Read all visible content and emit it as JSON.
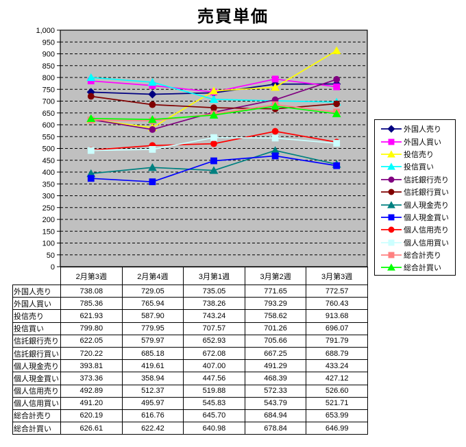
{
  "chart": {
    "title": "売買単価"
  },
  "colors": {
    "chart_background": "#FFFFFF",
    "plot_background": "#C0C0C0",
    "grid_line": "#000000",
    "axis_line": "#000000",
    "text": "#000000",
    "legend_border": "#000000",
    "table_border": "#000000"
  },
  "chart_data": {
    "type": "line",
    "title": "売買単価",
    "xlabel": "",
    "ylabel": "",
    "ylim": [
      0,
      1000
    ],
    "ytick_step": 50,
    "grid": "horizontal-dashed",
    "legend_position": "right",
    "plot_bg": "#C0C0C0",
    "value_decimals": 2,
    "categories": [
      "2月第3週",
      "2月第4週",
      "3月第1週",
      "3月第2週",
      "3月第3週"
    ],
    "series": [
      {
        "name": "外国人売り",
        "color": "#000080",
        "marker": "diamond",
        "values": [
          738.08,
          729.05,
          735.05,
          771.65,
          772.57
        ]
      },
      {
        "name": "外国人買い",
        "color": "#FF00FF",
        "marker": "square",
        "values": [
          785.36,
          765.94,
          738.26,
          793.29,
          760.43
        ]
      },
      {
        "name": "投信売り",
        "color": "#FFFF00",
        "marker": "triangle",
        "values": [
          621.93,
          587.9,
          743.24,
          758.62,
          913.68
        ]
      },
      {
        "name": "投信買い",
        "color": "#00FFFF",
        "marker": "triangle",
        "values": [
          799.8,
          779.95,
          707.57,
          701.26,
          696.07
        ]
      },
      {
        "name": "信託銀行売り",
        "color": "#800080",
        "marker": "circle",
        "values": [
          622.05,
          579.97,
          652.93,
          705.66,
          791.79
        ]
      },
      {
        "name": "信託銀行買い",
        "color": "#800000",
        "marker": "circle",
        "values": [
          720.22,
          685.18,
          672.08,
          667.25,
          688.79
        ]
      },
      {
        "name": "個人現金売り",
        "color": "#008080",
        "marker": "triangle",
        "values": [
          393.81,
          419.61,
          407.0,
          491.29,
          433.24
        ]
      },
      {
        "name": "個人現金買い",
        "color": "#0000FF",
        "marker": "square",
        "values": [
          373.36,
          358.94,
          447.56,
          468.39,
          427.12
        ]
      },
      {
        "name": "個人信用売り",
        "color": "#FF0000",
        "marker": "circle",
        "values": [
          492.89,
          512.37,
          519.88,
          572.33,
          526.6
        ]
      },
      {
        "name": "個人信用買い",
        "color": "#CCFFFF",
        "marker": "square",
        "values": [
          491.2,
          495.97,
          545.83,
          543.79,
          521.71
        ]
      },
      {
        "name": "総合計売り",
        "color": "#FF8080",
        "marker": "square",
        "values": [
          620.19,
          616.76,
          645.7,
          684.94,
          653.99
        ]
      },
      {
        "name": "総合計買い",
        "color": "#00FF00",
        "marker": "triangle",
        "values": [
          626.61,
          622.42,
          640.98,
          678.84,
          646.99
        ]
      }
    ]
  }
}
